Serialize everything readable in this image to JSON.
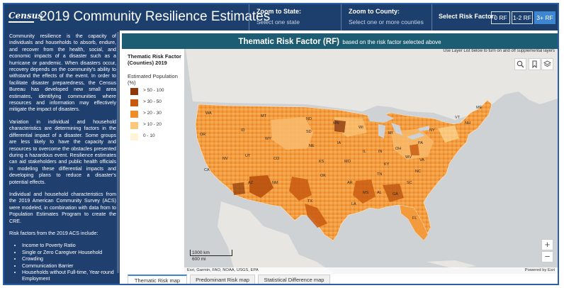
{
  "header": {
    "logo_text": "Census",
    "title": "2019 Community Resilience Estimates",
    "zoom_state": {
      "label": "Zoom to State:",
      "value": "Select one state"
    },
    "zoom_county": {
      "label": "Zoom to County:",
      "value": "Select one or more counties"
    },
    "risk_factor": {
      "label": "Select Risk Factor:",
      "buttons": [
        "0 RF",
        "1-2 RF",
        "3+ RF"
      ],
      "selected": "3+ RF"
    }
  },
  "sidebar": {
    "paragraphs": [
      "Community resilience is the capacity of individuals and households to absorb, endure, and recover from the health, social, and economic impacts of a disaster such as a hurricane or pandemic. When disasters occur, recovery depends on the community's ability to withstand the effects of the event. In order to facilitate disaster preparedness, the Census Bureau has developed new small area estimates, identifying communities where resources and information may effectively mitigate the impact of disasters.",
      "Variation in individual and household characteristics are determining factors in the differential impact of a disaster. Some groups are less likely to have the capacity and resources to overcome the obstacles presented during a hazardous event. Resilience estimates can aid stakeholders and public health officials in modeling these differential impacts and developing plans to reduce a disaster's potential effects.",
      "Individual and household characteristics from the 2019 American Community Survey (ACS) were modeled, in combination with data from to Population Estimates Program to create the CRE.",
      "Risk factors from the 2019 ACS include:"
    ],
    "risk_factors": [
      "Income to Poverty Ratio",
      "Single or Zero Caregiver Household",
      "Crowding",
      "Communication Barrier",
      "Households without Full-time, Year-round Employment"
    ]
  },
  "main": {
    "banner_title": "Thematic Risk Factor (RF)",
    "banner_subtitle": "based on the risk factor selected above",
    "layer_hint": "Use Layer List below to turn on and off supplemental layers"
  },
  "legend": {
    "title": "Thematic Risk Factor (Counties) 2019",
    "subtitle": "Estimated Population (%)",
    "classes": [
      {
        "label": "> 50 - 100",
        "color": "#8c3a0b"
      },
      {
        "label": "> 30 - 50",
        "color": "#c8590f"
      },
      {
        "label": "> 20 - 30",
        "color": "#f08c2a"
      },
      {
        "label": "> 10 - 20",
        "color": "#fbc77a"
      },
      {
        "label": "0 - 10",
        "color": "#fef4d6"
      }
    ]
  },
  "map": {
    "tools": {
      "search_icon": "search-icon",
      "bookmark_icon": "bookmark-icon",
      "layers_icon": "layers-icon"
    },
    "zoom_in": "+",
    "zoom_out": "−",
    "scale_km": "1000 km",
    "scale_mi": "600 mi",
    "attribution_left": "Esri, Garmin, FAO, NOAA, USGS, EPA",
    "attribution_right": "Powered by Esri",
    "state_labels": [
      "WA",
      "OR",
      "CA",
      "NV",
      "ID",
      "MT",
      "WY",
      "UT",
      "AZ",
      "CO",
      "NM",
      "ND",
      "SD",
      "NE",
      "KS",
      "OK",
      "TX",
      "MN",
      "IA",
      "MO",
      "AR",
      "LA",
      "WI",
      "IL",
      "MS",
      "AL",
      "GA",
      "FL",
      "SC",
      "NC",
      "TN",
      "KY",
      "IN",
      "OH",
      "MI",
      "PA",
      "NY",
      "WV",
      "VA",
      "ME",
      "VT",
      "NH"
    ]
  },
  "tabs": [
    "Thematic Risk map",
    "Predominant Risk map",
    "Statistical Difference map"
  ],
  "active_tab": "Thematic Risk map"
}
